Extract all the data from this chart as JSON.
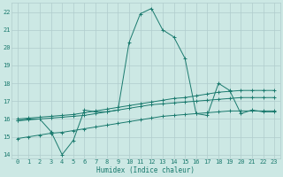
{
  "xlabel": "Humidex (Indice chaleur)",
  "bg_color": "#cce8e4",
  "grid_color": "#b0cccc",
  "line_color": "#1a7a6e",
  "xlim": [
    -0.5,
    23.5
  ],
  "ylim": [
    13.8,
    22.5
  ],
  "yticks": [
    14,
    15,
    16,
    17,
    18,
    19,
    20,
    21,
    22
  ],
  "xticks": [
    0,
    1,
    2,
    3,
    4,
    5,
    6,
    7,
    8,
    9,
    10,
    11,
    12,
    13,
    14,
    15,
    16,
    17,
    18,
    19,
    20,
    21,
    22,
    23
  ],
  "series1_x": [
    0,
    1,
    2,
    3,
    4,
    5,
    6,
    7,
    8,
    9,
    10,
    11,
    12,
    13,
    14,
    15,
    16,
    17,
    18,
    19,
    20,
    21,
    22,
    23
  ],
  "series1_y": [
    15.9,
    16.0,
    16.0,
    15.3,
    14.0,
    14.8,
    16.5,
    16.4,
    16.4,
    16.5,
    20.3,
    21.9,
    22.2,
    21.0,
    20.6,
    19.4,
    16.3,
    16.2,
    18.0,
    17.6,
    16.3,
    16.5,
    16.4,
    16.4
  ],
  "series2_x": [
    0,
    1,
    2,
    3,
    4,
    5,
    6,
    7,
    8,
    9,
    10,
    11,
    12,
    13,
    14,
    15,
    16,
    17,
    18,
    19,
    20,
    21,
    22,
    23
  ],
  "series2_y": [
    16.0,
    16.05,
    16.1,
    16.15,
    16.2,
    16.25,
    16.35,
    16.45,
    16.55,
    16.65,
    16.75,
    16.85,
    16.95,
    17.05,
    17.15,
    17.2,
    17.3,
    17.4,
    17.5,
    17.55,
    17.6,
    17.6,
    17.6,
    17.6
  ],
  "series3_x": [
    0,
    1,
    2,
    3,
    4,
    5,
    6,
    7,
    8,
    9,
    10,
    11,
    12,
    13,
    14,
    15,
    16,
    17,
    18,
    19,
    20,
    21,
    22,
    23
  ],
  "series3_y": [
    15.9,
    15.95,
    16.0,
    16.05,
    16.1,
    16.15,
    16.2,
    16.3,
    16.4,
    16.5,
    16.6,
    16.7,
    16.8,
    16.85,
    16.9,
    16.95,
    17.0,
    17.05,
    17.1,
    17.15,
    17.2,
    17.2,
    17.2,
    17.2
  ],
  "series4_x": [
    0,
    1,
    2,
    3,
    4,
    5,
    6,
    7,
    8,
    9,
    10,
    11,
    12,
    13,
    14,
    15,
    16,
    17,
    18,
    19,
    20,
    21,
    22,
    23
  ],
  "series4_y": [
    14.9,
    15.0,
    15.1,
    15.2,
    15.25,
    15.35,
    15.45,
    15.55,
    15.65,
    15.75,
    15.85,
    15.95,
    16.05,
    16.15,
    16.2,
    16.25,
    16.3,
    16.35,
    16.4,
    16.45,
    16.45,
    16.45,
    16.45,
    16.45
  ]
}
